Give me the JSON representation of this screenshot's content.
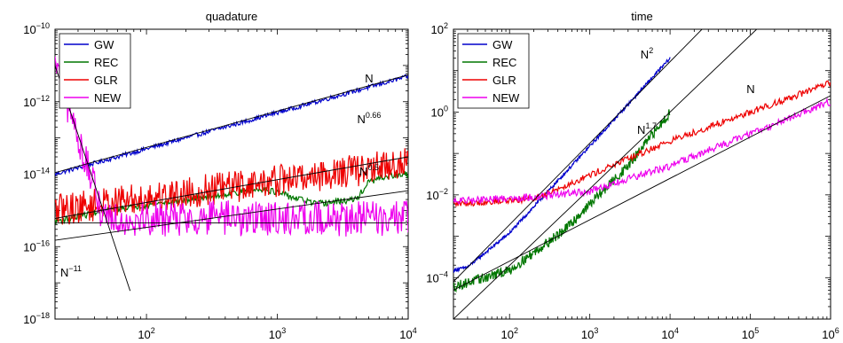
{
  "chart_data": [
    {
      "type": "line",
      "title": "quadature",
      "xscale": "log",
      "yscale": "log",
      "xlim": [
        20,
        10000
      ],
      "ylim": [
        1e-18,
        1e-10
      ],
      "xticks": [
        {
          "base": "10",
          "exp": "2"
        },
        {
          "base": "10",
          "exp": "3"
        },
        {
          "base": "10",
          "exp": "4"
        }
      ],
      "yticks": [
        {
          "base": "10",
          "exp": "−18"
        },
        {
          "base": "10",
          "exp": "−16"
        },
        {
          "base": "10",
          "exp": "−14"
        },
        {
          "base": "10",
          "exp": "−12"
        },
        {
          "base": "10",
          "exp": "−10"
        }
      ],
      "legend": {
        "placement": "top-left",
        "entries": [
          "GW",
          "REC",
          "GLR",
          "NEW"
        ]
      },
      "series": [
        {
          "name": "GW",
          "color": "#0000cc",
          "noise": 0.06,
          "points": [
            [
              20,
              1e-14
            ],
            [
              10000,
              5e-12
            ]
          ]
        },
        {
          "name": "REC",
          "color": "#007700",
          "noise": 0.09,
          "points": [
            [
              20,
              5e-16
            ],
            [
              50,
              1e-15
            ],
            [
              200,
              2e-15
            ],
            [
              800,
              4e-15
            ],
            [
              1200,
              2.5e-15
            ],
            [
              2000,
              1.5e-15
            ],
            [
              4000,
              2e-15
            ],
            [
              5000,
              6e-15
            ],
            [
              7000,
              9e-15
            ],
            [
              10000,
              1e-14
            ]
          ]
        },
        {
          "name": "GLR",
          "color": "#ee0000",
          "noise": 0.45,
          "points": [
            [
              20,
              1e-15
            ],
            [
              10000,
              2e-14
            ]
          ]
        },
        {
          "name": "NEW",
          "color": "#ee00ee",
          "noise": 0.5,
          "points": [
            [
              20,
              1e-11
            ],
            [
              45,
              1e-15
            ],
            [
              60,
              6e-16
            ],
            [
              10000,
              6e-16
            ]
          ]
        }
      ],
      "reference_lines": [
        {
          "label": {
            "base": "N",
            "exp": ""
          },
          "points": [
            [
              20,
              1.1e-14
            ],
            [
              10000,
              5.5e-12
            ]
          ]
        },
        {
          "label": {
            "base": "N",
            "exp": "0.66"
          },
          "points": [
            [
              20,
              6e-16
            ],
            [
              10000,
              3e-14
            ]
          ]
        },
        {
          "label": {
            "base": "N",
            "exp": "0.5"
          },
          "points": [
            [
              20,
              1.5e-16
            ],
            [
              10000,
              3.5e-15
            ]
          ]
        },
        {
          "label": {
            "base": "",
            "exp": ""
          },
          "points": [
            [
              20,
              4.5e-16
            ],
            [
              10000,
              4.5e-16
            ]
          ]
        },
        {
          "label": {
            "base": "N",
            "exp": "−11"
          },
          "points": [
            [
              20,
              1e-11
            ],
            [
              75,
              6e-18
            ]
          ]
        }
      ]
    },
    {
      "type": "line",
      "title": "time",
      "xscale": "log",
      "yscale": "log",
      "xlim": [
        20,
        1000000
      ],
      "ylim": [
        1e-05,
        100
      ],
      "xticks": [
        {
          "base": "10",
          "exp": "2"
        },
        {
          "base": "10",
          "exp": "3"
        },
        {
          "base": "10",
          "exp": "4"
        },
        {
          "base": "10",
          "exp": "5"
        },
        {
          "base": "10",
          "exp": "6"
        }
      ],
      "yticks": [
        {
          "base": "10",
          "exp": "−4"
        },
        {
          "base": "10",
          "exp": "−2"
        },
        {
          "base": "10",
          "exp": "0"
        },
        {
          "base": "10",
          "exp": "2"
        }
      ],
      "legend": {
        "placement": "top-left",
        "entries": [
          "GW",
          "REC",
          "GLR",
          "NEW"
        ]
      },
      "series": [
        {
          "name": "GW",
          "color": "#0000cc",
          "noise": 0.04,
          "points": [
            [
              20,
              0.00015
            ],
            [
              30,
              0.00018
            ],
            [
              100,
              0.0012
            ],
            [
              1000,
              0.15
            ],
            [
              10000,
              20
            ]
          ]
        },
        {
          "name": "REC",
          "color": "#007700",
          "noise": 0.12,
          "points": [
            [
              20,
              6e-05
            ],
            [
              100,
              0.00015
            ],
            [
              200,
              0.0004
            ],
            [
              500,
              0.0015
            ],
            [
              1000,
              0.006
            ],
            [
              3000,
              0.05
            ],
            [
              10000,
              1
            ]
          ]
        },
        {
          "name": "GLR",
          "color": "#ee0000",
          "noise": 0.08,
          "points": [
            [
              20,
              0.006
            ],
            [
              200,
              0.008
            ],
            [
              1000,
              0.03
            ],
            [
              10000,
              0.2
            ],
            [
              100000,
              1
            ],
            [
              1000000,
              5
            ]
          ]
        },
        {
          "name": "NEW",
          "color": "#ee00ee",
          "noise": 0.09,
          "points": [
            [
              20,
              0.007
            ],
            [
              200,
              0.009
            ],
            [
              1000,
              0.012
            ],
            [
              10000,
              0.05
            ],
            [
              100000,
              0.3
            ],
            [
              1000000,
              1.8
            ]
          ]
        }
      ],
      "reference_lines": [
        {
          "label": {
            "base": "N",
            "exp": "2"
          },
          "points": [
            [
              20,
              8e-05
            ],
            [
              25000,
              100
            ]
          ]
        },
        {
          "label": {
            "base": "N",
            "exp": "1.7"
          },
          "points": [
            [
              20,
              1e-05
            ],
            [
              120000,
              100
            ]
          ]
        },
        {
          "label": {
            "base": "N",
            "exp": ""
          },
          "points": [
            [
              20,
              5e-05
            ],
            [
              1000000,
              2.5
            ]
          ]
        }
      ]
    }
  ]
}
